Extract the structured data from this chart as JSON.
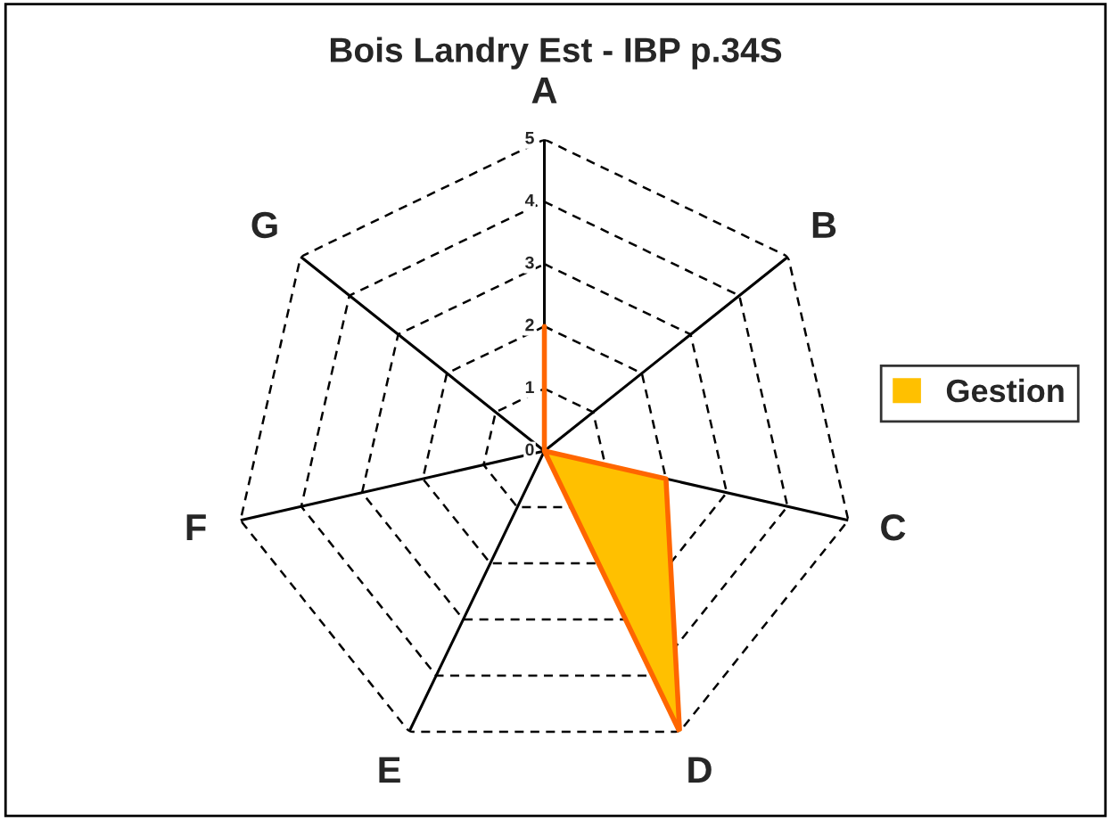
{
  "chart_data": {
    "type": "radar",
    "title": "Bois Landry Est - IBP p.34S",
    "categories": [
      "A",
      "B",
      "C",
      "D",
      "E",
      "F",
      "G"
    ],
    "series": [
      {
        "name": "Gestion",
        "color": "#ffc000",
        "values": [
          2,
          0,
          2,
          5,
          0,
          0,
          0
        ]
      }
    ],
    "ylim": [
      0,
      5
    ],
    "yticks": [
      0,
      1,
      2,
      3,
      4,
      5
    ],
    "grid": true,
    "legend": "right"
  }
}
